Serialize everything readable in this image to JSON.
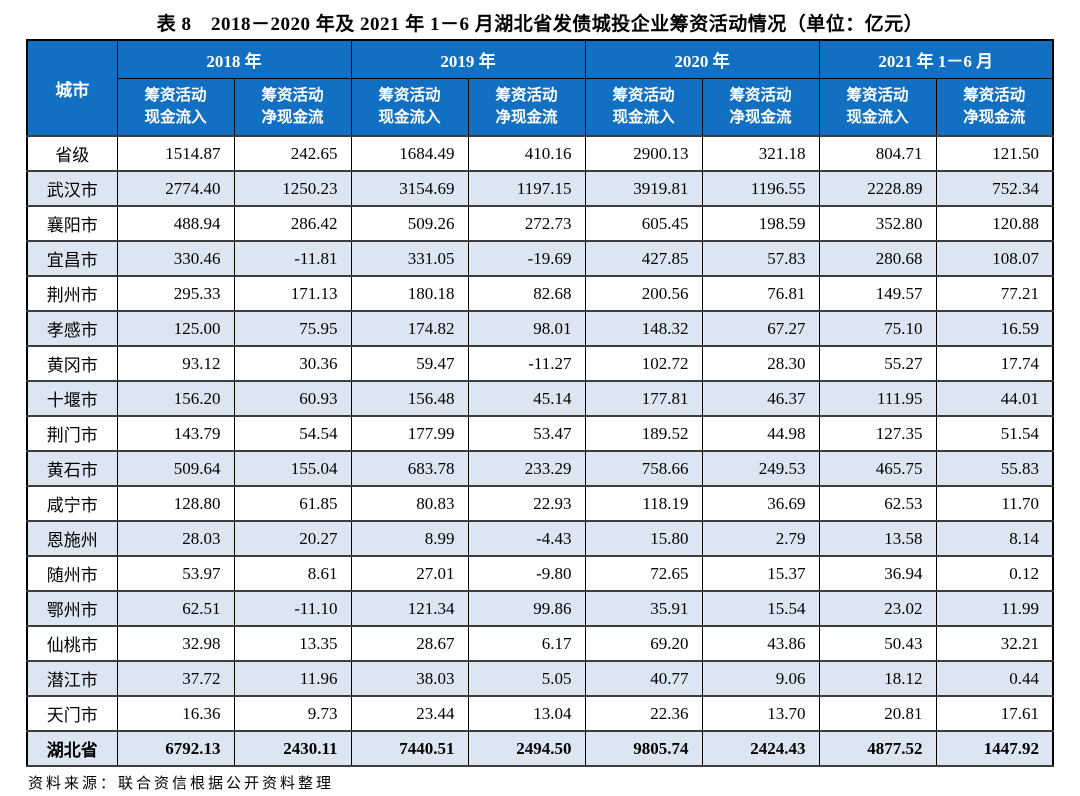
{
  "title": "表 8　2018－2020 年及 2021 年 1－6 月湖北省发债城投企业筹资活动情况（单位：亿元）",
  "source_note": "资料来源：联合资信根据公开资料整理",
  "colors": {
    "header_bg": "#1270c2",
    "header_text": "#ffffff",
    "stripe_bg": "#dce6f2",
    "border": "#000000"
  },
  "table": {
    "city_header": "城市",
    "year_groups": [
      {
        "label": "2018 年"
      },
      {
        "label": "2019 年"
      },
      {
        "label": "2020 年"
      },
      {
        "label": "2021 年 1－6 月"
      }
    ],
    "sub_columns": [
      {
        "line1": "筹资活动",
        "line2": "现金流入"
      },
      {
        "line1": "筹资活动",
        "line2": "净现金流"
      }
    ],
    "rows": [
      {
        "city": "省级",
        "values": [
          "1514.87",
          "242.65",
          "1684.49",
          "410.16",
          "2900.13",
          "321.18",
          "804.71",
          "121.50"
        ],
        "bold": false
      },
      {
        "city": "武汉市",
        "values": [
          "2774.40",
          "1250.23",
          "3154.69",
          "1197.15",
          "3919.81",
          "1196.55",
          "2228.89",
          "752.34"
        ],
        "bold": false
      },
      {
        "city": "襄阳市",
        "values": [
          "488.94",
          "286.42",
          "509.26",
          "272.73",
          "605.45",
          "198.59",
          "352.80",
          "120.88"
        ],
        "bold": false
      },
      {
        "city": "宜昌市",
        "values": [
          "330.46",
          "-11.81",
          "331.05",
          "-19.69",
          "427.85",
          "57.83",
          "280.68",
          "108.07"
        ],
        "bold": false
      },
      {
        "city": "荆州市",
        "values": [
          "295.33",
          "171.13",
          "180.18",
          "82.68",
          "200.56",
          "76.81",
          "149.57",
          "77.21"
        ],
        "bold": false
      },
      {
        "city": "孝感市",
        "values": [
          "125.00",
          "75.95",
          "174.82",
          "98.01",
          "148.32",
          "67.27",
          "75.10",
          "16.59"
        ],
        "bold": false
      },
      {
        "city": "黄冈市",
        "values": [
          "93.12",
          "30.36",
          "59.47",
          "-11.27",
          "102.72",
          "28.30",
          "55.27",
          "17.74"
        ],
        "bold": false
      },
      {
        "city": "十堰市",
        "values": [
          "156.20",
          "60.93",
          "156.48",
          "45.14",
          "177.81",
          "46.37",
          "111.95",
          "44.01"
        ],
        "bold": false
      },
      {
        "city": "荆门市",
        "values": [
          "143.79",
          "54.54",
          "177.99",
          "53.47",
          "189.52",
          "44.98",
          "127.35",
          "51.54"
        ],
        "bold": false
      },
      {
        "city": "黄石市",
        "values": [
          "509.64",
          "155.04",
          "683.78",
          "233.29",
          "758.66",
          "249.53",
          "465.75",
          "55.83"
        ],
        "bold": false
      },
      {
        "city": "咸宁市",
        "values": [
          "128.80",
          "61.85",
          "80.83",
          "22.93",
          "118.19",
          "36.69",
          "62.53",
          "11.70"
        ],
        "bold": false
      },
      {
        "city": "恩施州",
        "values": [
          "28.03",
          "20.27",
          "8.99",
          "-4.43",
          "15.80",
          "2.79",
          "13.58",
          "8.14"
        ],
        "bold": false
      },
      {
        "city": "随州市",
        "values": [
          "53.97",
          "8.61",
          "27.01",
          "-9.80",
          "72.65",
          "15.37",
          "36.94",
          "0.12"
        ],
        "bold": false
      },
      {
        "city": "鄂州市",
        "values": [
          "62.51",
          "-11.10",
          "121.34",
          "99.86",
          "35.91",
          "15.54",
          "23.02",
          "11.99"
        ],
        "bold": false
      },
      {
        "city": "仙桃市",
        "values": [
          "32.98",
          "13.35",
          "28.67",
          "6.17",
          "69.20",
          "43.86",
          "50.43",
          "32.21"
        ],
        "bold": false
      },
      {
        "city": "潜江市",
        "values": [
          "37.72",
          "11.96",
          "38.03",
          "5.05",
          "40.77",
          "9.06",
          "18.12",
          "0.44"
        ],
        "bold": false
      },
      {
        "city": "天门市",
        "values": [
          "16.36",
          "9.73",
          "23.44",
          "13.04",
          "22.36",
          "13.70",
          "20.81",
          "17.61"
        ],
        "bold": false
      },
      {
        "city": "湖北省",
        "values": [
          "6792.13",
          "2430.11",
          "7440.51",
          "2494.50",
          "9805.74",
          "2424.43",
          "4877.52",
          "1447.92"
        ],
        "bold": true
      }
    ]
  }
}
